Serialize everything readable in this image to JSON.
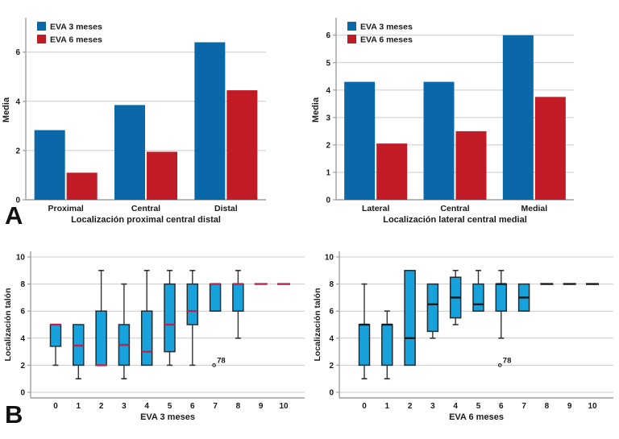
{
  "figure": {
    "panels": {
      "a": "A",
      "b": "B"
    }
  },
  "colors": {
    "bar_blue": "#0A68A9",
    "bar_red": "#C11B26",
    "box_fill": "#18A2DB",
    "box_stroke": "#242B31",
    "whisker": "#2F3338",
    "median_red": "#C2224A",
    "median_black": "#16191C",
    "grid": "#CBCBCB",
    "axis": "#9C9FA3",
    "text": "#1A1A1A"
  },
  "chart_data": [
    {
      "id": "bar-proximal-central-distal",
      "type": "bar",
      "categories": [
        "Proximal",
        "Central",
        "Distal"
      ],
      "series": [
        {
          "name": "EVA 3 meses",
          "color_key": "bar_blue",
          "values": [
            2.83,
            3.85,
            6.4
          ]
        },
        {
          "name": "EVA 6 meses",
          "color_key": "bar_red",
          "values": [
            1.1,
            1.95,
            4.45
          ]
        }
      ],
      "xlabel": "Localización proximal central distal",
      "ylabel": "Media",
      "ylim": [
        0,
        7.3
      ],
      "yticks": [
        0,
        2,
        4,
        6
      ],
      "grid": true,
      "legend_position": "top-left-inside"
    },
    {
      "id": "bar-lateral-central-medial",
      "type": "bar",
      "categories": [
        "Lateral",
        "Central",
        "Medial"
      ],
      "series": [
        {
          "name": "EVA 3 meses",
          "color_key": "bar_blue",
          "values": [
            4.3,
            4.3,
            6.0
          ]
        },
        {
          "name": "EVA 6 meses",
          "color_key": "bar_red",
          "values": [
            2.05,
            2.5,
            3.75
          ]
        }
      ],
      "xlabel": "Localización lateral central medial",
      "ylabel": "Media",
      "ylim": [
        0,
        6.55
      ],
      "yticks": [
        0,
        1,
        2,
        3,
        4,
        5,
        6
      ],
      "grid": true,
      "legend_position": "top-left-inside"
    },
    {
      "id": "boxplot-eva-3-meses",
      "type": "boxplot",
      "x_categories": [
        "0",
        "1",
        "2",
        "3",
        "4",
        "5",
        "6",
        "7",
        "8",
        "9",
        "10"
      ],
      "xlabel": "EVA 3 meses",
      "ylabel": "Localización talón",
      "ylim": [
        -0.6,
        10.6
      ],
      "yticks": [
        0,
        2,
        4,
        6,
        8,
        10
      ],
      "grid": true,
      "median_color_key": "median_red",
      "boxes": [
        {
          "x": 0,
          "q1": 3.4,
          "median": 5,
          "q3": 5,
          "whisker_low": 2
        },
        {
          "x": 1,
          "q1": 2,
          "median": 3.45,
          "q3": 5,
          "whisker_low": 1
        },
        {
          "x": 2,
          "q1": 2,
          "median": 2,
          "q3": 6,
          "whisker_high": 9
        },
        {
          "x": 3,
          "q1": 2,
          "median": 3.5,
          "q3": 5,
          "whisker_low": 1,
          "whisker_high": 8
        },
        {
          "x": 4,
          "q1": 2,
          "median": 3,
          "q3": 6,
          "whisker_high": 9
        },
        {
          "x": 5,
          "q1": 3,
          "median": 5,
          "q3": 8,
          "whisker_low": 2,
          "whisker_high": 9
        },
        {
          "x": 6,
          "q1": 5,
          "median": 6,
          "q3": 8,
          "whisker_low": 2,
          "whisker_high": 9
        },
        {
          "x": 7,
          "q1": 6,
          "median": 8,
          "q3": 8,
          "outlier": {
            "value": 2,
            "label": "78"
          }
        },
        {
          "x": 8,
          "q1": 6,
          "median": 8,
          "q3": 8,
          "whisker_low": 4,
          "whisker_high": 9
        },
        {
          "x": 9,
          "single_value": 8
        },
        {
          "x": 10,
          "single_value": 8
        }
      ]
    },
    {
      "id": "boxplot-eva-6-meses",
      "type": "boxplot",
      "x_categories": [
        "0",
        "1",
        "2",
        "3",
        "4",
        "5",
        "6",
        "7",
        "8",
        "9",
        "10"
      ],
      "xlabel": "EVA 6 meses",
      "ylabel": "Localización talón",
      "ylim": [
        -0.6,
        10.6
      ],
      "yticks": [
        0,
        2,
        4,
        6,
        8,
        10
      ],
      "grid": true,
      "median_color_key": "median_black",
      "boxes": [
        {
          "x": 0,
          "q1": 2,
          "median": 5,
          "q3": 5,
          "whisker_low": 1,
          "whisker_high": 8
        },
        {
          "x": 1,
          "q1": 2,
          "median": 5,
          "q3": 5,
          "whisker_low": 1,
          "whisker_high": 6
        },
        {
          "x": 2,
          "q1": 2,
          "median": 4,
          "q3": 9
        },
        {
          "x": 3,
          "q1": 4.5,
          "median": 6.5,
          "q3": 8,
          "whisker_low": 4
        },
        {
          "x": 4,
          "q1": 5.5,
          "median": 7,
          "q3": 8.5,
          "whisker_low": 5,
          "whisker_high": 9
        },
        {
          "x": 5,
          "q1": 6,
          "median": 6.5,
          "q3": 8,
          "whisker_high": 9
        },
        {
          "x": 6,
          "q1": 6,
          "median": 8,
          "q3": 8,
          "whisker_low": 4,
          "whisker_high": 9,
          "outlier": {
            "value": 2,
            "label": "78"
          }
        },
        {
          "x": 7,
          "q1": 6,
          "median": 7,
          "q3": 8
        },
        {
          "x": 8,
          "single_value": 8
        },
        {
          "x": 9,
          "single_value": 8
        },
        {
          "x": 10,
          "single_value": 8
        }
      ]
    }
  ]
}
